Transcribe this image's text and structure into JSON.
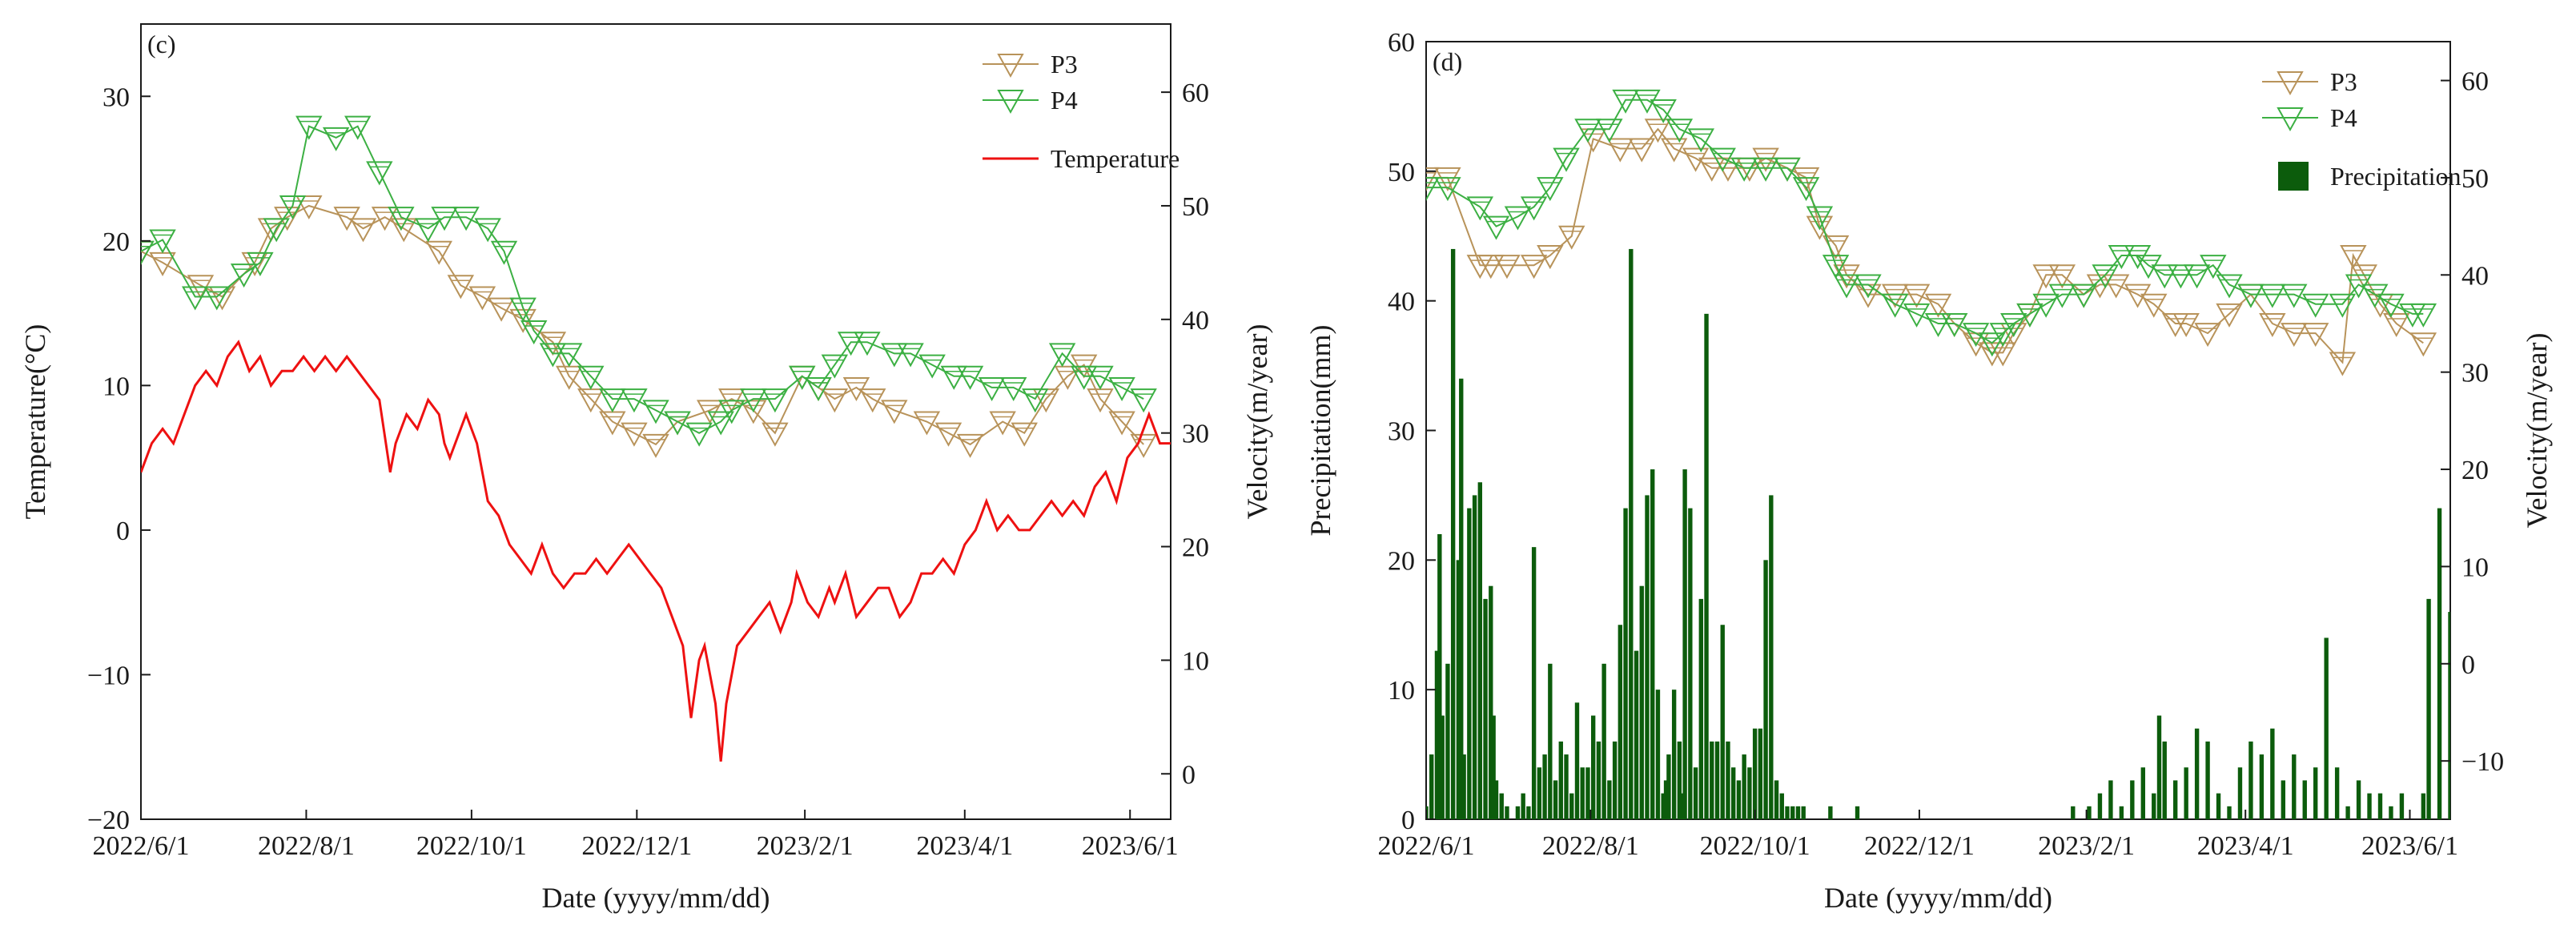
{
  "chart_data": [
    {
      "panel_label": "(c)",
      "type": "line",
      "xlabel": "Date (yyyy/mm/dd)",
      "ylabel_left": "Temperature(°C)",
      "ylabel_right": "Velocity(m/year)",
      "x_tick_labels": [
        "2022/6/1",
        "2022/8/1",
        "2022/10/1",
        "2022/12/1",
        "2023/2/1",
        "2023/4/1",
        "2023/6/1"
      ],
      "x_tick_days": [
        0,
        61,
        122,
        183,
        245,
        304,
        365
      ],
      "x_range_days": [
        0,
        380
      ],
      "ylim_left": [
        -20,
        35
      ],
      "yticks_left": [
        -20,
        -10,
        0,
        10,
        20,
        30
      ],
      "ylim_right": [
        -4,
        66
      ],
      "yticks_right": [
        0,
        10,
        20,
        30,
        40,
        50,
        60
      ],
      "legend": [
        "P3",
        "P4",
        "Temperature"
      ],
      "colors": {
        "P3": "#b8935a",
        "P4": "#3cb043",
        "Temperature": "#ee1111"
      },
      "series": [
        {
          "name": "P3",
          "axis": "right",
          "marker": "down-triangle",
          "x": [
            0,
            8,
            22,
            30,
            42,
            48,
            54,
            62,
            76,
            82,
            90,
            97,
            110,
            118,
            126,
            133,
            141,
            152,
            158,
            166,
            174,
            182,
            190,
            198,
            210,
            218,
            226,
            234,
            244,
            250,
            256,
            264,
            270,
            278,
            290,
            298,
            306,
            318,
            326,
            334,
            342,
            348,
            354,
            362,
            370
          ],
          "y": [
            46,
            45,
            43,
            42,
            45,
            48,
            49,
            50,
            49,
            48,
            49,
            48,
            46,
            43,
            42,
            41,
            40,
            38,
            35,
            33,
            31,
            30,
            29,
            31,
            32,
            33,
            32,
            30,
            35,
            34,
            33,
            34,
            33,
            32,
            31,
            30,
            29,
            31,
            30,
            33,
            35,
            36,
            33,
            31,
            29
          ]
        },
        {
          "name": "P4",
          "axis": "right",
          "marker": "down-triangle",
          "x": [
            0,
            8,
            20,
            28,
            38,
            44,
            50,
            56,
            62,
            72,
            80,
            88,
            96,
            106,
            112,
            120,
            128,
            134,
            141,
            145,
            152,
            158,
            166,
            174,
            182,
            190,
            198,
            206,
            214,
            218,
            226,
            234,
            244,
            250,
            256,
            262,
            268,
            278,
            284,
            292,
            300,
            306,
            314,
            322,
            330,
            340,
            348,
            354,
            362,
            370
          ],
          "y": [
            46,
            47,
            42,
            42,
            44,
            45,
            48,
            50,
            57,
            56,
            57,
            53,
            49,
            48,
            49,
            49,
            48,
            46,
            41,
            39,
            37,
            37,
            35,
            33,
            33,
            32,
            31,
            30,
            31,
            32,
            33,
            33,
            35,
            34,
            36,
            38,
            38,
            37,
            37,
            36,
            35,
            35,
            34,
            34,
            33,
            37,
            35,
            35,
            34,
            33
          ]
        },
        {
          "name": "Temperature",
          "axis": "left",
          "marker": "none",
          "x": [
            0,
            4,
            8,
            12,
            16,
            20,
            24,
            28,
            32,
            36,
            40,
            44,
            48,
            52,
            56,
            60,
            64,
            68,
            72,
            76,
            80,
            84,
            88,
            92,
            94,
            96,
            98,
            102,
            106,
            110,
            112,
            114,
            118,
            120,
            124,
            128,
            132,
            136,
            140,
            144,
            148,
            152,
            156,
            160,
            164,
            168,
            172,
            176,
            180,
            184,
            188,
            192,
            196,
            200,
            203,
            206,
            208,
            210,
            212,
            214,
            216,
            218,
            220,
            224,
            228,
            232,
            236,
            240,
            242,
            246,
            250,
            254,
            256,
            260,
            264,
            268,
            272,
            276,
            280,
            284,
            288,
            292,
            296,
            300,
            304,
            308,
            312,
            316,
            320,
            324,
            328,
            332,
            336,
            340,
            344,
            348,
            352,
            356,
            360,
            364,
            368,
            372,
            376,
            380
          ],
          "y": [
            4,
            6,
            7,
            6,
            8,
            10,
            11,
            10,
            12,
            13,
            11,
            12,
            10,
            11,
            11,
            12,
            11,
            12,
            11,
            12,
            11,
            10,
            9,
            4,
            6,
            7,
            8,
            7,
            9,
            8,
            6,
            5,
            7,
            8,
            6,
            2,
            1,
            -1,
            -2,
            -3,
            -1,
            -3,
            -4,
            -3,
            -3,
            -2,
            -3,
            -2,
            -1,
            -2,
            -3,
            -4,
            -6,
            -8,
            -13,
            -9,
            -8,
            -10,
            -12,
            -16,
            -12,
            -10,
            -8,
            -7,
            -6,
            -5,
            -7,
            -5,
            -3,
            -5,
            -6,
            -4,
            -5,
            -3,
            -6,
            -5,
            -4,
            -4,
            -6,
            -5,
            -3,
            -3,
            -2,
            -3,
            -1,
            0,
            2,
            0,
            1,
            0,
            0,
            1,
            2,
            1,
            2,
            1,
            3,
            4,
            2,
            5,
            6,
            8,
            6,
            6
          ]
        }
      ]
    },
    {
      "panel_label": "(d)",
      "type": "bar+line",
      "xlabel": "Date (yyyy/mm/dd)",
      "ylabel_left": "Precipitation(mm)",
      "ylabel_right": "Velocity(m/year)",
      "x_tick_labels": [
        "2022/6/1",
        "2022/8/1",
        "2022/10/1",
        "2022/12/1",
        "2023/2/1",
        "2023/4/1",
        "2023/6/1"
      ],
      "x_tick_days": [
        0,
        61,
        122,
        183,
        245,
        304,
        365
      ],
      "x_range_days": [
        0,
        380
      ],
      "ylim_left": [
        0,
        60
      ],
      "yticks_left": [
        0,
        10,
        20,
        30,
        40,
        50,
        60
      ],
      "ylim_right": [
        -16,
        64
      ],
      "yticks_right": [
        -10,
        0,
        10,
        20,
        30,
        40,
        50,
        60
      ],
      "legend": [
        "P3",
        "P4",
        "Precipitation"
      ],
      "colors": {
        "P3": "#b8935a",
        "P4": "#3cb043",
        "Precipitation": "#0c5c0c"
      },
      "series": [
        {
          "name": "P3",
          "axis": "right",
          "marker": "down-triangle",
          "x": [
            0,
            8,
            20,
            24,
            30,
            40,
            46,
            54,
            62,
            72,
            80,
            86,
            92,
            100,
            106,
            112,
            120,
            126,
            134,
            141,
            146,
            152,
            156,
            164,
            174,
            182,
            190,
            196,
            204,
            210,
            214,
            218,
            224,
            230,
            236,
            244,
            250,
            256,
            264,
            270,
            278,
            282,
            290,
            298,
            306,
            314,
            322,
            330,
            340,
            344,
            348,
            354,
            360,
            370
          ],
          "y": [
            50,
            50,
            41,
            41,
            41,
            41,
            42,
            44,
            54,
            53,
            53,
            55,
            53,
            52,
            51,
            51,
            51,
            52,
            51,
            50,
            45,
            43,
            40,
            38,
            38,
            38,
            37,
            35,
            33,
            32,
            32,
            34,
            36,
            40,
            40,
            38,
            39,
            39,
            38,
            37,
            35,
            35,
            34,
            36,
            38,
            35,
            34,
            34,
            31,
            42,
            40,
            37,
            35,
            33
          ]
        },
        {
          "name": "P4",
          "axis": "right",
          "marker": "down-triangle",
          "x": [
            0,
            8,
            20,
            26,
            34,
            40,
            46,
            52,
            60,
            68,
            74,
            82,
            88,
            94,
            102,
            110,
            118,
            126,
            134,
            141,
            146,
            152,
            156,
            164,
            174,
            182,
            190,
            196,
            204,
            210,
            214,
            218,
            224,
            230,
            236,
            244,
            252,
            258,
            264,
            268,
            274,
            280,
            286,
            292,
            298,
            306,
            314,
            322,
            330,
            340,
            346,
            352,
            358,
            366,
            370
          ],
          "y": [
            49,
            49,
            47,
            45,
            46,
            47,
            49,
            52,
            55,
            55,
            58,
            58,
            57,
            55,
            54,
            52,
            51,
            51,
            51,
            49,
            46,
            41,
            39,
            39,
            37,
            36,
            35,
            35,
            34,
            33,
            34,
            35,
            36,
            37,
            38,
            38,
            40,
            42,
            42,
            41,
            40,
            40,
            40,
            41,
            39,
            38,
            38,
            38,
            37,
            37,
            39,
            38,
            37,
            36,
            36
          ]
        },
        {
          "name": "Precipitation",
          "axis": "left",
          "marker": "bar",
          "x": [
            0,
            2,
            4,
            5,
            6,
            8,
            10,
            12,
            13,
            14,
            16,
            18,
            20,
            22,
            24,
            25,
            26,
            28,
            30,
            34,
            36,
            38,
            40,
            42,
            44,
            46,
            48,
            50,
            52,
            54,
            56,
            58,
            60,
            62,
            64,
            66,
            68,
            70,
            72,
            74,
            76,
            78,
            80,
            82,
            84,
            86,
            88,
            89,
            90,
            92,
            94,
            95,
            96,
            98,
            100,
            102,
            104,
            106,
            108,
            110,
            112,
            114,
            116,
            118,
            120,
            122,
            124,
            126,
            128,
            130,
            132,
            134,
            136,
            138,
            140,
            150,
            160,
            170,
            180,
            190,
            200,
            210,
            220,
            230,
            240,
            246,
            250,
            254,
            258,
            262,
            266,
            270,
            272,
            274,
            278,
            282,
            286,
            290,
            294,
            298,
            302,
            306,
            310,
            314,
            318,
            322,
            326,
            330,
            334,
            338,
            342,
            346,
            350,
            354,
            358,
            362,
            366,
            368,
            370,
            372,
            376,
            380
          ],
          "y": [
            1,
            5,
            13,
            22,
            8,
            12,
            44,
            20,
            34,
            5,
            24,
            25,
            26,
            17,
            18,
            8,
            3,
            2,
            1,
            1,
            2,
            1,
            21,
            4,
            5,
            12,
            3,
            6,
            5,
            2,
            9,
            4,
            4,
            8,
            6,
            12,
            3,
            6,
            15,
            24,
            44,
            13,
            18,
            25,
            27,
            10,
            2,
            3,
            5,
            10,
            6,
            2,
            27,
            24,
            4,
            17,
            39,
            6,
            6,
            15,
            6,
            4,
            3,
            5,
            4,
            7,
            7,
            20,
            25,
            3,
            2,
            1,
            1,
            1,
            1,
            1,
            1,
            0,
            0,
            0,
            0,
            0,
            0,
            0,
            1,
            1,
            2,
            3,
            1,
            3,
            4,
            2,
            8,
            6,
            3,
            4,
            7,
            6,
            2,
            1,
            4,
            6,
            5,
            7,
            3,
            5,
            3,
            4,
            14,
            4,
            1,
            3,
            2,
            2,
            1,
            2,
            0,
            0,
            2,
            17,
            24,
            16
          ]
        }
      ]
    }
  ]
}
